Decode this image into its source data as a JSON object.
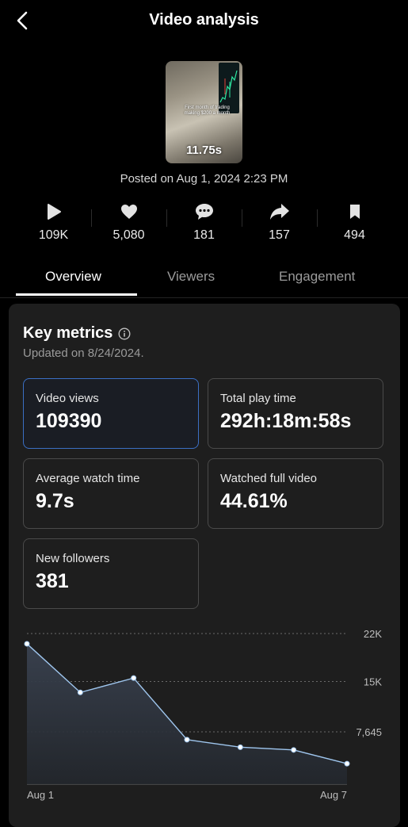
{
  "header": {
    "title": "Video analysis"
  },
  "video": {
    "caption": "First month of trading making $200 a month",
    "duration": "11.75s",
    "posted": "Posted on Aug 1, 2024 2:23 PM"
  },
  "stats": [
    {
      "icon": "play-icon",
      "value": "109K"
    },
    {
      "icon": "heart-icon",
      "value": "5,080"
    },
    {
      "icon": "comment-icon",
      "value": "181"
    },
    {
      "icon": "share-icon",
      "value": "157"
    },
    {
      "icon": "bookmark-icon",
      "value": "494"
    }
  ],
  "tabs": [
    {
      "label": "Overview",
      "active": true
    },
    {
      "label": "Viewers",
      "active": false
    },
    {
      "label": "Engagement",
      "active": false
    }
  ],
  "key_metrics": {
    "title": "Key metrics",
    "updated": "Updated on 8/24/2024.",
    "items": [
      {
        "label": "Video views",
        "value": "109390",
        "selected": true
      },
      {
        "label": "Total play time",
        "value": "292h:18m:58s",
        "selected": false
      },
      {
        "label": "Average watch time",
        "value": "9.7s",
        "selected": false
      },
      {
        "label": "Watched full video",
        "value": "44.61%",
        "selected": false
      },
      {
        "label": "New followers",
        "value": "381",
        "selected": false
      }
    ]
  },
  "colors": {
    "accent_border": "#3b6fc4",
    "line": "#9fc6ee"
  },
  "chart_data": {
    "type": "area",
    "x": [
      "Aug 1",
      "Aug 2",
      "Aug 3",
      "Aug 4",
      "Aug 5",
      "Aug 6",
      "Aug 7"
    ],
    "x_tick_labels": [
      "Aug 1",
      "Aug 7"
    ],
    "values": [
      20500,
      13400,
      15500,
      6500,
      5400,
      5000,
      3000
    ],
    "y_ticks": [
      "22K",
      "15K",
      "7,645"
    ],
    "y_tick_values": [
      22000,
      15000,
      7645
    ],
    "ylim": [
      0,
      22000
    ],
    "grid": true
  }
}
